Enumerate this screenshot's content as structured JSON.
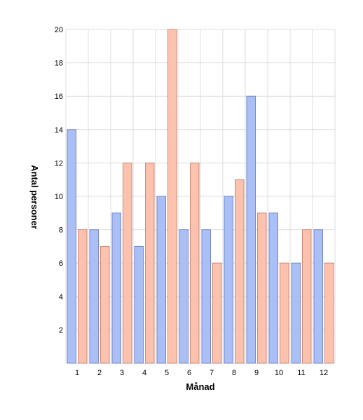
{
  "chart_data": {
    "type": "bar",
    "title": "",
    "xlabel": "Månad",
    "ylabel": "Antal personer",
    "categories": [
      "1",
      "2",
      "3",
      "4",
      "5",
      "6",
      "7",
      "8",
      "9",
      "10",
      "11",
      "12"
    ],
    "series": [
      {
        "values": [
          14,
          8,
          9,
          7,
          10,
          8,
          8,
          10,
          16,
          9,
          6,
          8
        ]
      },
      {
        "values": [
          8,
          7,
          12,
          12,
          20,
          12,
          6,
          11,
          9,
          6,
          8,
          6
        ]
      }
    ],
    "colors": [
      "#aabff5",
      "#fcc2ad"
    ],
    "stroke_colors": [
      "#7488c8",
      "#c88a78"
    ],
    "ylim": [
      0,
      20
    ],
    "yticks": [
      2,
      4,
      6,
      8,
      10,
      12,
      14,
      16,
      18,
      20
    ],
    "grid": true,
    "legend": "none"
  }
}
